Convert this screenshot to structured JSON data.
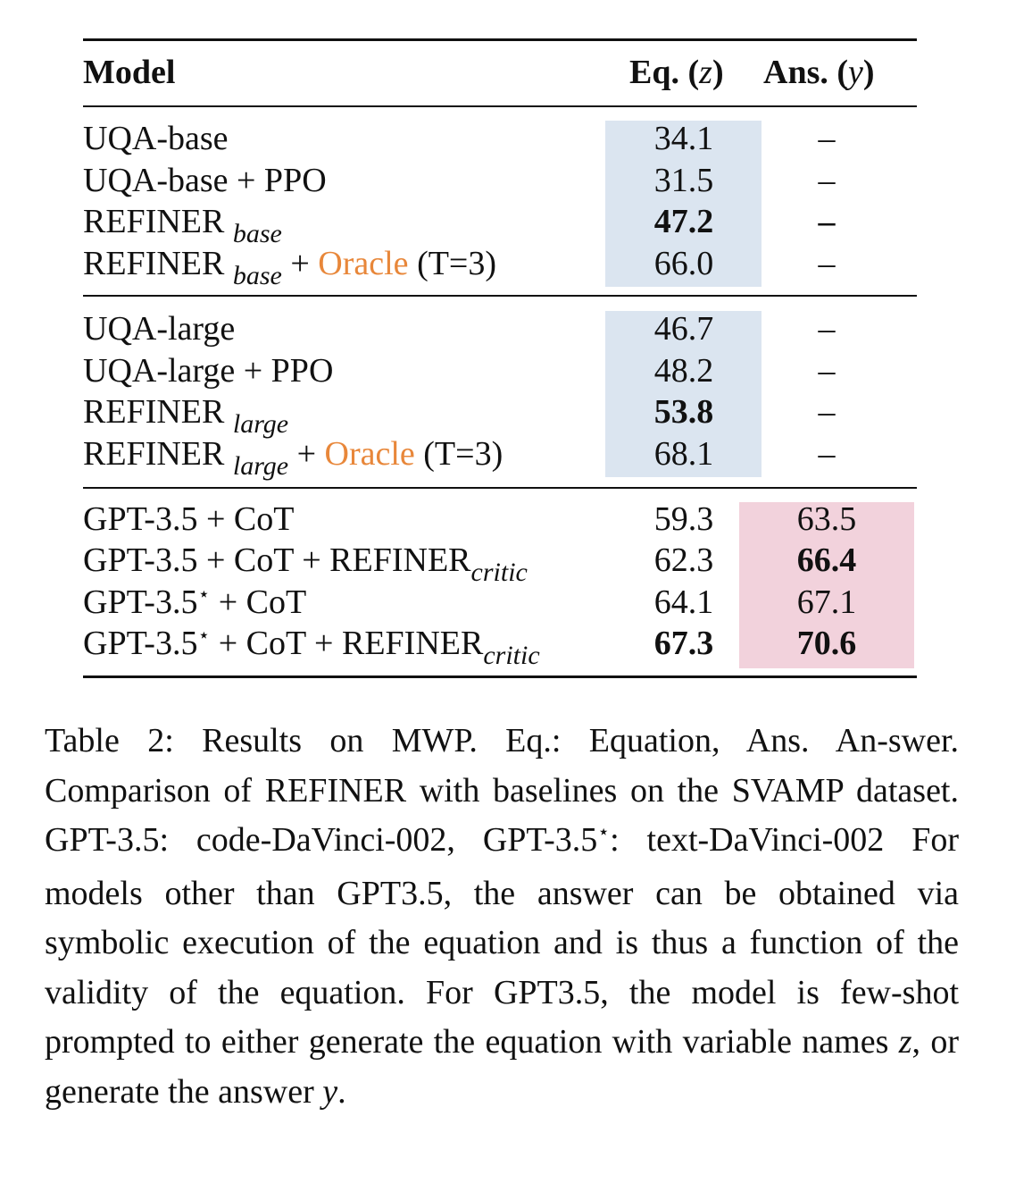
{
  "table": {
    "headers": {
      "model": "Model",
      "eq": "Eq.",
      "eq_var": "z",
      "ans": "Ans.",
      "ans_var": "y"
    },
    "groups": [
      {
        "rows": [
          {
            "base": "UQA-base",
            "sub": "",
            "oracle": "",
            "tail": "",
            "eq": "34.1",
            "eq_bold": false,
            "ans": "–",
            "ans_bold": false
          },
          {
            "base": "UQA-base + PPO",
            "sub": "",
            "oracle": "",
            "tail": "",
            "eq": "31.5",
            "eq_bold": false,
            "ans": "–",
            "ans_bold": false
          },
          {
            "base": "REFINER",
            "sub": "base",
            "oracle": "",
            "tail": "",
            "eq": "47.2",
            "eq_bold": true,
            "ans": "–",
            "ans_bold": true
          },
          {
            "base": "REFINER",
            "sub": "base",
            "plus": "+",
            "oracle": "Oracle",
            "tail": "(T=3)",
            "eq": "66.0",
            "eq_bold": false,
            "ans": "–",
            "ans_bold": false
          }
        ]
      },
      {
        "rows": [
          {
            "base": "UQA-large",
            "sub": "",
            "oracle": "",
            "tail": "",
            "eq": "46.7",
            "eq_bold": false,
            "ans": "–",
            "ans_bold": false
          },
          {
            "base": "UQA-large + PPO",
            "sub": "",
            "oracle": "",
            "tail": "",
            "eq": "48.2",
            "eq_bold": false,
            "ans": "–",
            "ans_bold": false
          },
          {
            "base": "REFINER",
            "sub": "large",
            "oracle": "",
            "tail": "",
            "eq": "53.8",
            "eq_bold": true,
            "ans": "–",
            "ans_bold": false
          },
          {
            "base": "REFINER",
            "sub": "large",
            "plus": "+",
            "oracle": "Oracle",
            "tail": "(T=3)",
            "eq": "68.1",
            "eq_bold": false,
            "ans": "–",
            "ans_bold": false
          }
        ]
      },
      {
        "rows": [
          {
            "base": "GPT-3.5 + CoT",
            "sub": "",
            "oracle": "",
            "tail": "",
            "eq": "59.3",
            "eq_bold": false,
            "ans": "63.5",
            "ans_bold": false
          },
          {
            "base": "GPT-3.5 + CoT + REFINER",
            "sub": "critic",
            "oracle": "",
            "tail": "",
            "eq": "62.3",
            "eq_bold": false,
            "ans": "66.4",
            "ans_bold": true
          },
          {
            "base": "GPT-3.5",
            "star": "⋆",
            "after_star": " + CoT",
            "sub": "",
            "oracle": "",
            "tail": "",
            "eq": "64.1",
            "eq_bold": false,
            "ans": "67.1",
            "ans_bold": false
          },
          {
            "base": "GPT-3.5",
            "star": "⋆",
            "after_star": " + CoT + REFINER",
            "sub": "critic",
            "oracle": "",
            "tail": "",
            "eq": "67.3",
            "eq_bold": true,
            "ans": "70.6",
            "ans_bold": true
          }
        ]
      }
    ]
  },
  "caption": {
    "p1": "Table 2: Results on MWP. Eq.: Equation, Ans. An-swer. Comparison of REFINER with baselines on the SVAMP dataset. GPT-3.5: code-DaVinci-002, GPT-3.5",
    "star": "⋆",
    "p2": ": text-DaVinci-002 For models other than GPT3.5, the answer can be obtained via symbolic execution of the equation and is thus a function of the validity of the equation. For GPT3.5, the model is few-shot prompted to either generate the equation with variable names ",
    "var_z": "z",
    "p3": ", or generate the answer ",
    "var_y": "y",
    "p4": "."
  }
}
